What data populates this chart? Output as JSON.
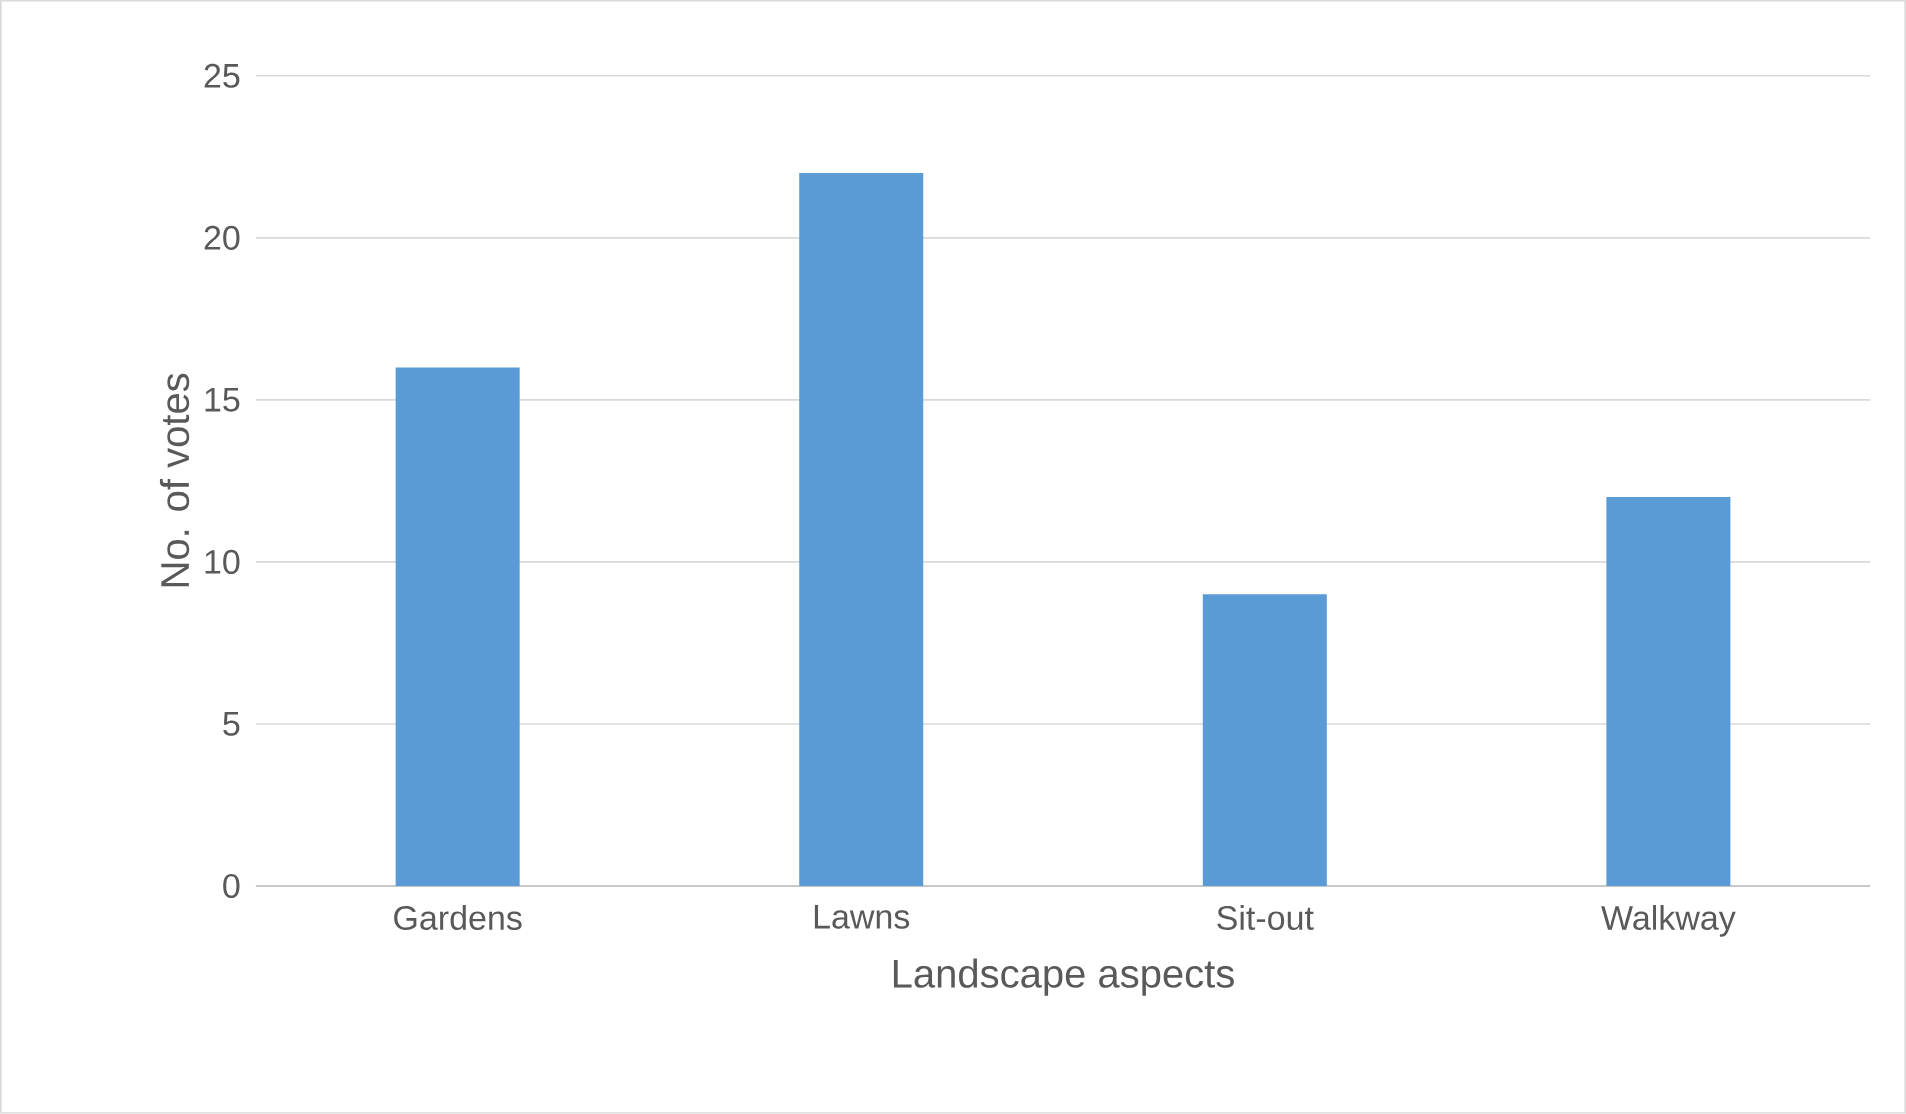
{
  "chart_data": {
    "type": "bar",
    "xlabel": "Landscape aspects",
    "ylabel": "No. of votes",
    "categories": [
      "Gardens",
      "Lawns",
      "Sit-out",
      "Walkway"
    ],
    "values": [
      16,
      22,
      9,
      12
    ],
    "color": "#5b9bd5",
    "ylim": [
      0,
      25
    ],
    "yticks": [
      0,
      5,
      10,
      15,
      20,
      25
    ],
    "grid": "y"
  }
}
